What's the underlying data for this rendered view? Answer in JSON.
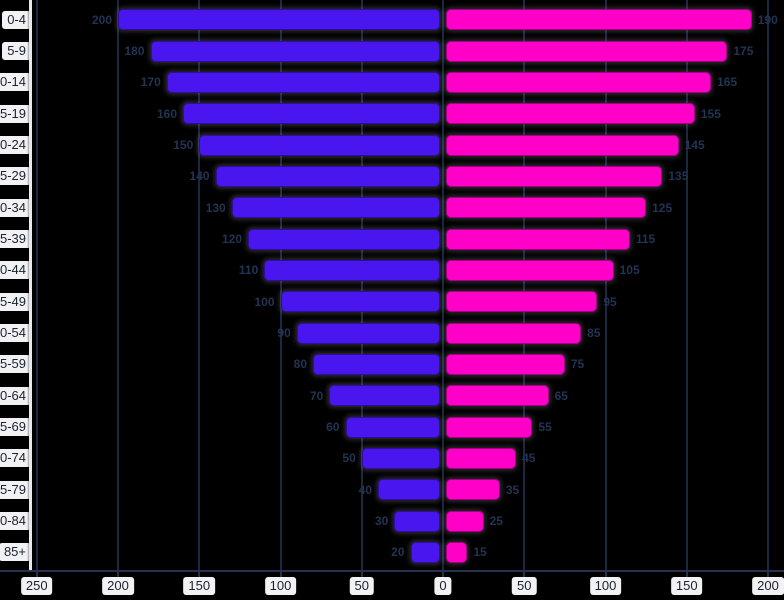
{
  "chart_data": {
    "type": "bar",
    "subtype": "population-pyramid",
    "title": "",
    "xlabel": "",
    "ylabel": "",
    "grid": true,
    "legend_position": "none",
    "age_groups": [
      "0-4",
      "5-9",
      "10-14",
      "15-19",
      "20-24",
      "25-29",
      "30-34",
      "35-39",
      "40-44",
      "45-49",
      "50-54",
      "55-59",
      "60-64",
      "65-69",
      "70-74",
      "75-79",
      "80-84",
      "85+"
    ],
    "series": [
      {
        "name": "left",
        "color": "#4a16ef",
        "values": [
          200,
          180,
          170,
          160,
          150,
          140,
          130,
          120,
          110,
          100,
          90,
          80,
          70,
          60,
          50,
          40,
          30,
          20
        ]
      },
      {
        "name": "right",
        "color": "#ff00c8",
        "values": [
          190,
          175,
          165,
          155,
          145,
          135,
          125,
          115,
          105,
          95,
          85,
          75,
          65,
          55,
          45,
          35,
          25,
          15
        ]
      }
    ],
    "x_tick_labels": [
      "250",
      "200",
      "150",
      "100",
      "50",
      "0",
      "50",
      "100",
      "150",
      "200"
    ],
    "x_tick_values": [
      -250,
      -200,
      -150,
      -100,
      -50,
      0,
      50,
      100,
      150,
      200
    ],
    "x_range_units": [
      -253,
      210
    ]
  },
  "colors": {
    "background": "#000000",
    "male_bar": "#4a16ef",
    "female_bar": "#ff00c8",
    "gridline": "#1b2940",
    "axis_spine": "#e8e8ec",
    "tick_pill_bg": "#f2f2f4",
    "tick_text": "#1a2230",
    "value_label": "#233352"
  }
}
